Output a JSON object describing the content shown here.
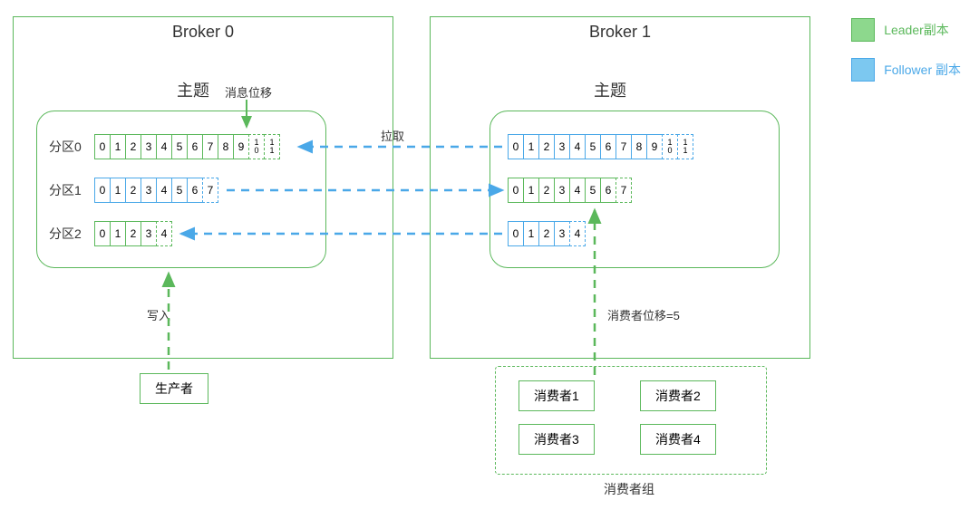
{
  "colors": {
    "leader_border": "#5bb85b",
    "follower_border": "#4aa8e8",
    "leader_fill": "#8dd88d",
    "follower_fill": "#7cc8f0",
    "arrow_green": "#5bb85b",
    "arrow_blue": "#4aa8e8",
    "text": "#333333",
    "leader_text": "#5bb85b",
    "follower_text": "#4aa8e8"
  },
  "legend": {
    "leader_label": "Leader副本",
    "follower_label": "Follower 副本"
  },
  "broker0": {
    "title": "Broker 0",
    "topic_title": "主题",
    "msg_offset_label": "消息位移",
    "partitions": [
      {
        "label": "分区0",
        "role": "leader",
        "cells": [
          "0",
          "1",
          "2",
          "3",
          "4",
          "5",
          "6",
          "7",
          "8",
          "9",
          "10",
          "11"
        ],
        "dashed_from": 10
      },
      {
        "label": "分区1",
        "role": "follower",
        "cells": [
          "0",
          "1",
          "2",
          "3",
          "4",
          "5",
          "6",
          "7"
        ],
        "dashed_from": 7
      },
      {
        "label": "分区2",
        "role": "leader",
        "cells": [
          "0",
          "1",
          "2",
          "3",
          "4"
        ],
        "dashed_from": 4
      }
    ],
    "write_label": "写入",
    "producer_label": "生产者"
  },
  "broker1": {
    "title": "Broker 1",
    "topic_title": "主题",
    "partitions": [
      {
        "label": "",
        "role": "follower",
        "cells": [
          "0",
          "1",
          "2",
          "3",
          "4",
          "5",
          "6",
          "7",
          "8",
          "9",
          "10",
          "11"
        ],
        "dashed_from": 10
      },
      {
        "label": "",
        "role": "leader",
        "cells": [
          "0",
          "1",
          "2",
          "3",
          "4",
          "5",
          "6",
          "7"
        ],
        "dashed_from": 7
      },
      {
        "label": "",
        "role": "follower",
        "cells": [
          "0",
          "1",
          "2",
          "3",
          "4"
        ],
        "dashed_from": 4
      }
    ],
    "consumer_offset_label": "消费者位移=5"
  },
  "pull_label": "拉取",
  "consumer_group": {
    "label": "消费者组",
    "consumers": [
      "消费者1",
      "消费者2",
      "消费者3",
      "消费者4"
    ]
  }
}
